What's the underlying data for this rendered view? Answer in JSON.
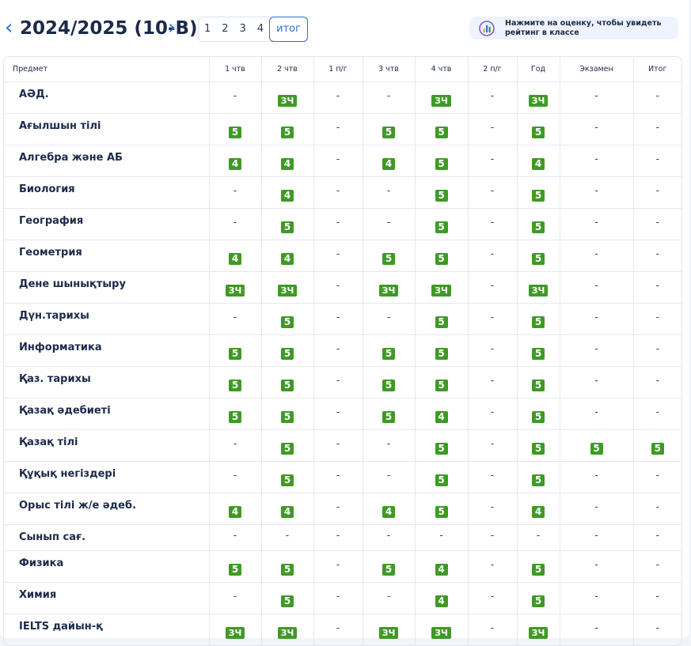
{
  "header": {
    "title": "2024/2025 (10-В)",
    "tabs": [
      "1",
      "2",
      "3",
      "4",
      "итог"
    ],
    "hint": "Нажмите на оценку, чтобы увидеть рейтинг в классе"
  },
  "table": {
    "columns": [
      "Предмет",
      "1 чтв",
      "2 чтв",
      "1 п/г",
      "3 чтв",
      "4 чтв",
      "2 п/г",
      "Год",
      "Экзамен",
      "Итог"
    ],
    "rows": [
      [
        "АӘД.",
        "-",
        "ЗЧ",
        "-",
        "-",
        "ЗЧ",
        "-",
        "ЗЧ",
        "-",
        "-"
      ],
      [
        "Ағылшын тілі",
        "5",
        "5",
        "-",
        "5",
        "5",
        "-",
        "5",
        "-",
        "-"
      ],
      [
        "Алгебра және АБ",
        "4",
        "4",
        "-",
        "4",
        "5",
        "-",
        "4",
        "-",
        "-"
      ],
      [
        "Биология",
        "-",
        "4",
        "-",
        "-",
        "5",
        "-",
        "5",
        "-",
        "-"
      ],
      [
        "География",
        "-",
        "5",
        "-",
        "-",
        "5",
        "-",
        "5",
        "-",
        "-"
      ],
      [
        "Геометрия",
        "4",
        "4",
        "-",
        "5",
        "5",
        "-",
        "5",
        "-",
        "-"
      ],
      [
        "Дене шынықтыру",
        "ЗЧ",
        "ЗЧ",
        "-",
        "ЗЧ",
        "ЗЧ",
        "-",
        "ЗЧ",
        "-",
        "-"
      ],
      [
        "Дүн.тарихы",
        "-",
        "5",
        "-",
        "-",
        "5",
        "-",
        "5",
        "-",
        "-"
      ],
      [
        "Информатика",
        "5",
        "5",
        "-",
        "5",
        "5",
        "-",
        "5",
        "-",
        "-"
      ],
      [
        "Қаз. тарихы",
        "5",
        "5",
        "-",
        "5",
        "5",
        "-",
        "5",
        "-",
        "-"
      ],
      [
        "Қазақ әдебиеті",
        "5",
        "5",
        "-",
        "5",
        "4",
        "-",
        "5",
        "-",
        "-"
      ],
      [
        "Қазақ тілі",
        "-",
        "5",
        "-",
        "-",
        "5",
        "-",
        "5",
        "5",
        "5"
      ],
      [
        "Құқық негіздері",
        "-",
        "5",
        "-",
        "-",
        "5",
        "-",
        "5",
        "-",
        "-"
      ],
      [
        "Орыс тілі ж/е әдеб.",
        "4",
        "4",
        "-",
        "4",
        "5",
        "-",
        "4",
        "-",
        "-"
      ],
      [
        "Сынып сағ.",
        "-",
        "-",
        "-",
        "-",
        "-",
        "-",
        "-",
        "-",
        "-"
      ],
      [
        "Физика",
        "5",
        "5",
        "-",
        "5",
        "4",
        "-",
        "5",
        "-",
        "-"
      ],
      [
        "Химия",
        "-",
        "5",
        "-",
        "-",
        "4",
        "-",
        "5",
        "-",
        "-"
      ],
      [
        "IELTS дайын-қ",
        "ЗЧ",
        "ЗЧ",
        "-",
        "ЗЧ",
        "ЗЧ",
        "-",
        "ЗЧ",
        "-",
        "-"
      ]
    ]
  }
}
